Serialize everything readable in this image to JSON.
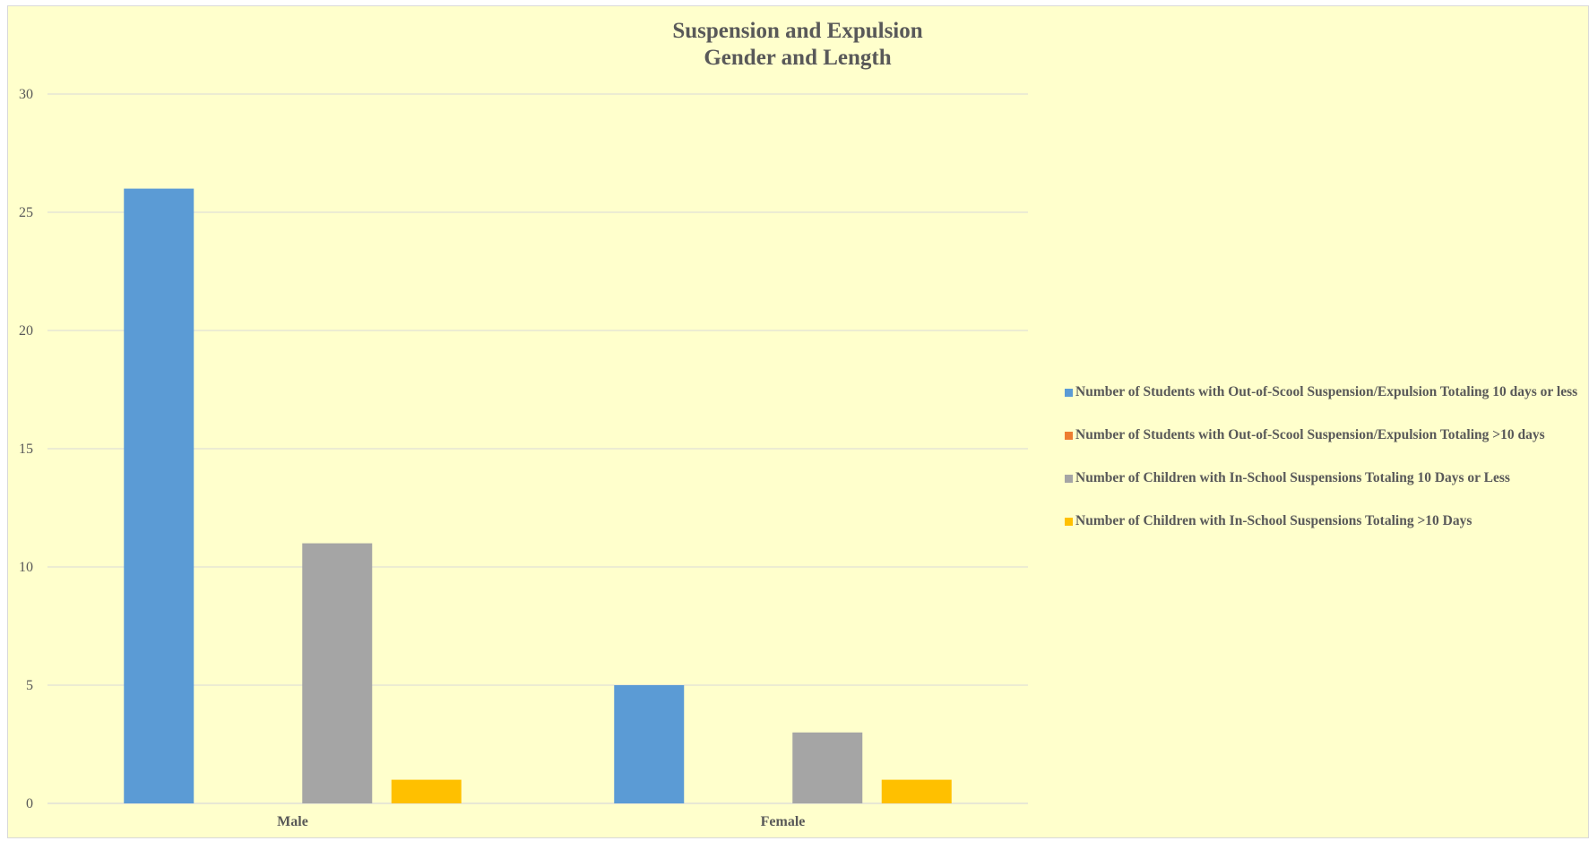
{
  "chart_data": {
    "type": "bar",
    "title": [
      "Suspension and Expulsion",
      "Gender and Length"
    ],
    "xlabel": "",
    "ylabel": "",
    "categories": [
      "Male",
      "Female"
    ],
    "ylim": [
      0,
      30
    ],
    "yticks": [
      0,
      5,
      10,
      15,
      20,
      25,
      30
    ],
    "grid": true,
    "legend_position": "right",
    "series": [
      {
        "name": "Number of Students with Out-of-Scool Suspension/Expulsion Totaling 10 days or less",
        "values": [
          26,
          5
        ],
        "color": "#5b9bd5"
      },
      {
        "name": "Number of Students with Out-of-Scool Suspension/Expulsion Totaling >10 days",
        "values": [
          0,
          0
        ],
        "color": "#ed7d31"
      },
      {
        "name": "Number of Children with In-School Suspensions Totaling 10 Days or Less",
        "values": [
          11,
          3
        ],
        "color": "#a5a5a5"
      },
      {
        "name": "Number of Children with In-School Suspensions Totaling >10 Days",
        "values": [
          1,
          1
        ],
        "color": "#ffc000"
      }
    ]
  }
}
